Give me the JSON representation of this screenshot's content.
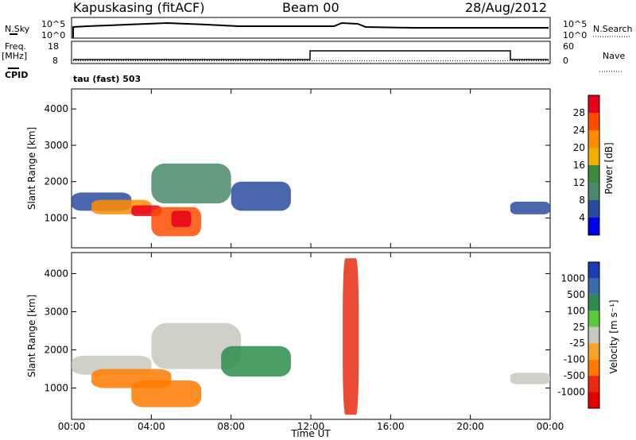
{
  "header": {
    "station": "Kapuskasing (fitACF)",
    "beam": "Beam 00",
    "date": "28/Aug/2012"
  },
  "strip_labels": {
    "nsky": "N.Sky",
    "nsky_ticks": [
      "10^5",
      "10^0"
    ],
    "nsearch": "N.Search",
    "nsearch_ticks": [
      "10^5",
      "10^0"
    ],
    "freq": "Freq.",
    "freq_unit": "[MHz]",
    "freq_ticks": [
      "18",
      "8"
    ],
    "nave": "Nave",
    "nave_ticks": [
      "60",
      "0"
    ],
    "cpid": "CPID",
    "cpid_text": "tau (fast) 503"
  },
  "panels": {
    "ylabel": "Slant Range [km]",
    "xlabel": "Time UT",
    "y_ticks": [
      "4000",
      "3000",
      "2000",
      "1000"
    ],
    "x_ticks": [
      "00:00",
      "04:00",
      "08:00",
      "12:00",
      "16:00",
      "20:00",
      "00:00"
    ]
  },
  "colorbars": {
    "power": {
      "label": "Power [dB]",
      "ticks": [
        "28",
        "24",
        "20",
        "16",
        "12",
        "8",
        "4"
      ],
      "colors": [
        "#e8001c",
        "#ff4c00",
        "#ff8c00",
        "#f0b000",
        "#3c8c3c",
        "#4a8a6a",
        "#2a4ca0",
        "#0000e8"
      ]
    },
    "velocity": {
      "label": "Velocity [m s⁻¹]",
      "ticks": [
        "1000",
        "500",
        "100",
        "25",
        "-25",
        "-100",
        "-500",
        "-1000"
      ],
      "colors": [
        "#1c3cb4",
        "#3c6ca8",
        "#2e8c4c",
        "#5cc840",
        "#c8c8c0",
        "#f4a428",
        "#ff7a00",
        "#e82a10",
        "#e80000"
      ]
    }
  },
  "chart_data": [
    {
      "type": "heatmap",
      "title": "Power",
      "xlabel": "Time UT",
      "ylabel": "Slant Range [km]",
      "xlim": [
        0,
        24
      ],
      "ylim": [
        180,
        4550
      ],
      "colorbar": "Power [dB]",
      "regions": [
        {
          "x": [
            0,
            3
          ],
          "y": [
            1200,
            1700
          ],
          "value": 6
        },
        {
          "x": [
            1,
            4
          ],
          "y": [
            1100,
            1500
          ],
          "value": 22
        },
        {
          "x": [
            3,
            4.5
          ],
          "y": [
            1050,
            1350
          ],
          "value": 28
        },
        {
          "x": [
            4,
            6.5
          ],
          "y": [
            500,
            1300
          ],
          "value": 24
        },
        {
          "x": [
            5,
            6
          ],
          "y": [
            750,
            1200
          ],
          "value": 28
        },
        {
          "x": [
            4,
            8
          ],
          "y": [
            1400,
            2500
          ],
          "value": 8
        },
        {
          "x": [
            8,
            11
          ],
          "y": [
            1200,
            2000
          ],
          "value": 6
        },
        {
          "x": [
            22,
            24
          ],
          "y": [
            1100,
            1450
          ],
          "value": 6
        }
      ]
    },
    {
      "type": "heatmap",
      "title": "Velocity",
      "xlabel": "Time UT",
      "ylabel": "Slant Range [km]",
      "xlim": [
        0,
        24
      ],
      "ylim": [
        180,
        4550
      ],
      "colorbar": "Velocity [m s⁻¹]",
      "regions": [
        {
          "x": [
            0,
            4
          ],
          "y": [
            1350,
            1850
          ],
          "value": 0
        },
        {
          "x": [
            1,
            5
          ],
          "y": [
            1000,
            1500
          ],
          "value": -200
        },
        {
          "x": [
            3,
            6.5
          ],
          "y": [
            500,
            1200
          ],
          "value": -300
        },
        {
          "x": [
            4,
            8.5
          ],
          "y": [
            1500,
            2700
          ],
          "value": 0
        },
        {
          "x": [
            7.5,
            11
          ],
          "y": [
            1300,
            2100
          ],
          "value": 150
        },
        {
          "x": [
            13.6,
            14.4
          ],
          "y": [
            300,
            4400
          ],
          "value": -800
        },
        {
          "x": [
            22,
            24
          ],
          "y": [
            1100,
            1400
          ],
          "value": 0
        }
      ]
    }
  ]
}
